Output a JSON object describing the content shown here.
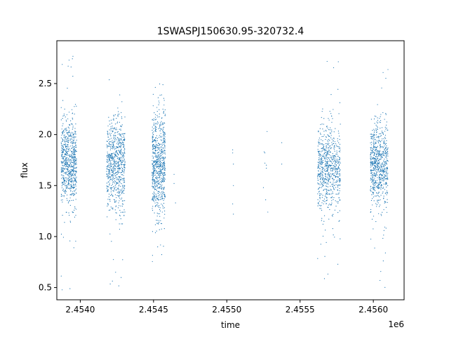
{
  "chart_data": {
    "type": "scatter",
    "title": "1SWASPJ150630.95-320732.4",
    "xlabel": "time",
    "ylabel": "flux",
    "x_offset_label": "1e6",
    "xlim": [
      2453840,
      2456210
    ],
    "ylim": [
      0.38,
      2.92
    ],
    "x_ticks": [
      2454000,
      2454500,
      2455000,
      2455500,
      2456000
    ],
    "x_tick_labels": [
      "2.4540",
      "2.4545",
      "2.4550",
      "2.4555",
      "2.4560"
    ],
    "y_ticks": [
      0.5,
      1.0,
      1.5,
      2.0,
      2.5
    ],
    "y_tick_labels": [
      "0.5",
      "1.0",
      "1.5",
      "2.0",
      "2.5"
    ],
    "grid": false,
    "marker_color": "#1f77b4",
    "seasons": [
      {
        "x_range": [
          2453870,
          2453975
        ],
        "y_center": 1.72,
        "y_spread": 0.2,
        "y_min": 0.47,
        "y_max": 2.78
      },
      {
        "x_range": [
          2454180,
          2454305
        ],
        "y_center": 1.7,
        "y_spread": 0.22,
        "y_min": 0.5,
        "y_max": 2.8
      },
      {
        "x_range": [
          2454490,
          2454580
        ],
        "y_center": 1.68,
        "y_spread": 0.26,
        "y_min": 0.5,
        "y_max": 2.85
      },
      {
        "x_range": [
          2455620,
          2455775
        ],
        "y_center": 1.68,
        "y_spread": 0.2,
        "y_min": 0.53,
        "y_max": 2.77
      },
      {
        "x_range": [
          2455980,
          2456100
        ],
        "y_center": 1.7,
        "y_spread": 0.2,
        "y_min": 0.5,
        "y_max": 2.66
      }
    ],
    "isolated_points": [
      {
        "x": 2454640,
        "y": 1.61
      },
      {
        "x": 2454640,
        "y": 1.52
      },
      {
        "x": 2454650,
        "y": 1.33
      },
      {
        "x": 2455040,
        "y": 1.85
      },
      {
        "x": 2455040,
        "y": 1.82
      },
      {
        "x": 2455045,
        "y": 1.71
      },
      {
        "x": 2455045,
        "y": 1.5
      },
      {
        "x": 2455040,
        "y": 1.32
      },
      {
        "x": 2455045,
        "y": 1.22
      },
      {
        "x": 2455255,
        "y": 1.83
      },
      {
        "x": 2455275,
        "y": 2.03
      },
      {
        "x": 2455260,
        "y": 1.72
      },
      {
        "x": 2455270,
        "y": 1.7
      },
      {
        "x": 2455250,
        "y": 1.48
      },
      {
        "x": 2455265,
        "y": 1.36
      },
      {
        "x": 2455280,
        "y": 1.24
      },
      {
        "x": 2455375,
        "y": 1.92
      },
      {
        "x": 2455375,
        "y": 1.71
      },
      {
        "x": 2455260,
        "y": 1.82
      },
      {
        "x": 2455270,
        "y": 1.67
      }
    ]
  }
}
